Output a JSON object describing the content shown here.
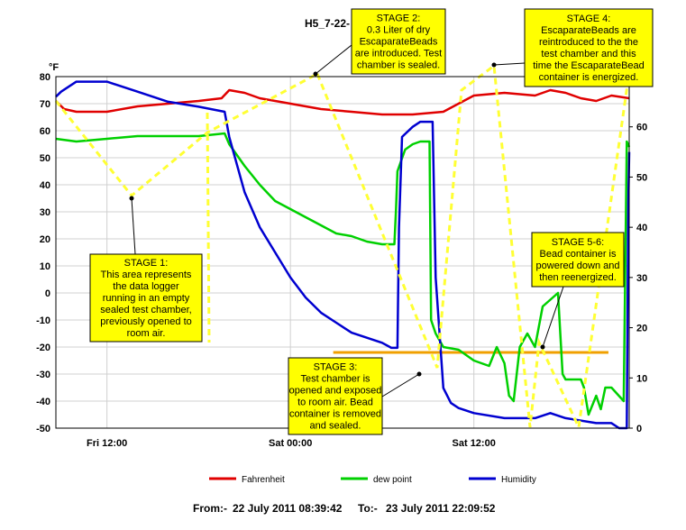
{
  "chart_data": {
    "type": "line",
    "title": "H5_7-22-",
    "left_axis_unit": "°F",
    "y_left_ticks": [
      80,
      70,
      60,
      50,
      40,
      30,
      20,
      10,
      0,
      -10,
      -20,
      -30,
      -40,
      -50
    ],
    "y_right_ticks": [
      60,
      50,
      40,
      30,
      20,
      10,
      0
    ],
    "ylim_left": [
      -50,
      80
    ],
    "ylim_right": [
      0,
      70
    ],
    "x_tick_labels": [
      "Fri 12:00",
      "Sat 00:00",
      "Sat 12:00"
    ],
    "x_ticks_hours": [
      12,
      24,
      36
    ],
    "xlim_hours": [
      8.66,
      46.16
    ],
    "x_unit_note": "hours from Fri 00:00",
    "grid": true,
    "legend_position": "bottom",
    "series": [
      {
        "name": "Fahrenheit",
        "axis": "left",
        "color": "#e00000",
        "points": [
          [
            8.66,
            71
          ],
          [
            9.2,
            68
          ],
          [
            10,
            67
          ],
          [
            12,
            67
          ],
          [
            14,
            69
          ],
          [
            16,
            70
          ],
          [
            18,
            71
          ],
          [
            19.5,
            72
          ],
          [
            20,
            75
          ],
          [
            21,
            74
          ],
          [
            22,
            72
          ],
          [
            24,
            70
          ],
          [
            26,
            68
          ],
          [
            28,
            67
          ],
          [
            30,
            66
          ],
          [
            32,
            66
          ],
          [
            34,
            67
          ],
          [
            35,
            70
          ],
          [
            36,
            73
          ],
          [
            38,
            74
          ],
          [
            40,
            73
          ],
          [
            41,
            75
          ],
          [
            42,
            74
          ],
          [
            43,
            72
          ],
          [
            44,
            71
          ],
          [
            45,
            73
          ],
          [
            46.16,
            72
          ]
        ]
      },
      {
        "name": "dew point",
        "axis": "left",
        "color": "#00d000",
        "points": [
          [
            8.66,
            57
          ],
          [
            10,
            56
          ],
          [
            12,
            57
          ],
          [
            14,
            58
          ],
          [
            16,
            58
          ],
          [
            18,
            58
          ],
          [
            19.7,
            59
          ],
          [
            20,
            55
          ],
          [
            21,
            47
          ],
          [
            22,
            40
          ],
          [
            23,
            34
          ],
          [
            24,
            31
          ],
          [
            25,
            28
          ],
          [
            26,
            25
          ],
          [
            27,
            22
          ],
          [
            28,
            21
          ],
          [
            29,
            19
          ],
          [
            30,
            18
          ],
          [
            30.8,
            18
          ],
          [
            30.9,
            30
          ],
          [
            31,
            45
          ],
          [
            31.5,
            53
          ],
          [
            32,
            55
          ],
          [
            32.5,
            56
          ],
          [
            33.1,
            56
          ],
          [
            33.2,
            -10
          ],
          [
            33.5,
            -15
          ],
          [
            34,
            -20
          ],
          [
            35,
            -21
          ],
          [
            36,
            -25
          ],
          [
            37,
            -27
          ],
          [
            37.5,
            -20
          ],
          [
            38,
            -26
          ],
          [
            38.3,
            -38
          ],
          [
            38.6,
            -40
          ],
          [
            39,
            -20
          ],
          [
            39.5,
            -15
          ],
          [
            40,
            -20
          ],
          [
            40.5,
            -5
          ],
          [
            41.5,
            0
          ],
          [
            41.8,
            -30
          ],
          [
            42,
            -32
          ],
          [
            43,
            -32
          ],
          [
            43.2,
            -35
          ],
          [
            43.5,
            -45
          ],
          [
            44,
            -38
          ],
          [
            44.3,
            -43
          ],
          [
            44.6,
            -35
          ],
          [
            45,
            -35
          ],
          [
            45.8,
            -40
          ],
          [
            46,
            56
          ],
          [
            46.16,
            54
          ]
        ]
      },
      {
        "name": "Humidity",
        "axis": "right",
        "color": "#0000d0",
        "points": [
          [
            8.66,
            66
          ],
          [
            9,
            67
          ],
          [
            10,
            69
          ],
          [
            12,
            69
          ],
          [
            14,
            67
          ],
          [
            16,
            65
          ],
          [
            18,
            64
          ],
          [
            19.7,
            63
          ],
          [
            20,
            58
          ],
          [
            21,
            47
          ],
          [
            22,
            40
          ],
          [
            23,
            35
          ],
          [
            24,
            30
          ],
          [
            25,
            26
          ],
          [
            26,
            23
          ],
          [
            27,
            21
          ],
          [
            28,
            19
          ],
          [
            29,
            18
          ],
          [
            30,
            17
          ],
          [
            30.6,
            16
          ],
          [
            31,
            16
          ],
          [
            31.1,
            40
          ],
          [
            31.3,
            58
          ],
          [
            32,
            60
          ],
          [
            32.5,
            61
          ],
          [
            33.3,
            61
          ],
          [
            33.5,
            30
          ],
          [
            34,
            8
          ],
          [
            34.5,
            5
          ],
          [
            35,
            4
          ],
          [
            36,
            3
          ],
          [
            38,
            2
          ],
          [
            40,
            2
          ],
          [
            41,
            3
          ],
          [
            42,
            2
          ],
          [
            44,
            1
          ],
          [
            45,
            1
          ],
          [
            45.5,
            0
          ],
          [
            46,
            0
          ],
          [
            46.1,
            45
          ],
          [
            46.16,
            55
          ]
        ]
      }
    ],
    "annotations": [
      {
        "id": "stage1",
        "lines": [
          "STAGE 1:",
          "This area represents",
          "the data logger",
          "running in an empty",
          "sealed test chamber,",
          "previously opened to",
          "room air."
        ]
      },
      {
        "id": "stage2",
        "lines": [
          "STAGE 2:",
          "0.3 Liter of dry",
          "EscaparateBeads",
          "are introduced. Test",
          "chamber is sealed."
        ]
      },
      {
        "id": "stage3",
        "lines": [
          "STAGE 3:",
          "Test chamber is",
          "opened and exposed",
          "to room air. Bead",
          "container is removed",
          "and sealed."
        ]
      },
      {
        "id": "stage4",
        "lines": [
          "STAGE 4:",
          "EscaparateBeads are",
          "reintroduced to the the",
          "test chamber and this",
          "time the EscaparateBead",
          "container is energized."
        ]
      },
      {
        "id": "stage56",
        "lines": [
          "STAGE 5-6:",
          "Bead container is",
          "powered down and",
          "then reenergized."
        ]
      }
    ],
    "reference_line": {
      "axis": "left",
      "value": -22,
      "color": "#f0a000"
    },
    "guide_color": "#ffff33",
    "annotation_fill": "#ffff00",
    "footer": {
      "from_label": "From:-",
      "from_value": "22 July 2011 08:39:42",
      "to_label": "To:-",
      "to_value": "23 July 2011 22:09:52"
    }
  }
}
